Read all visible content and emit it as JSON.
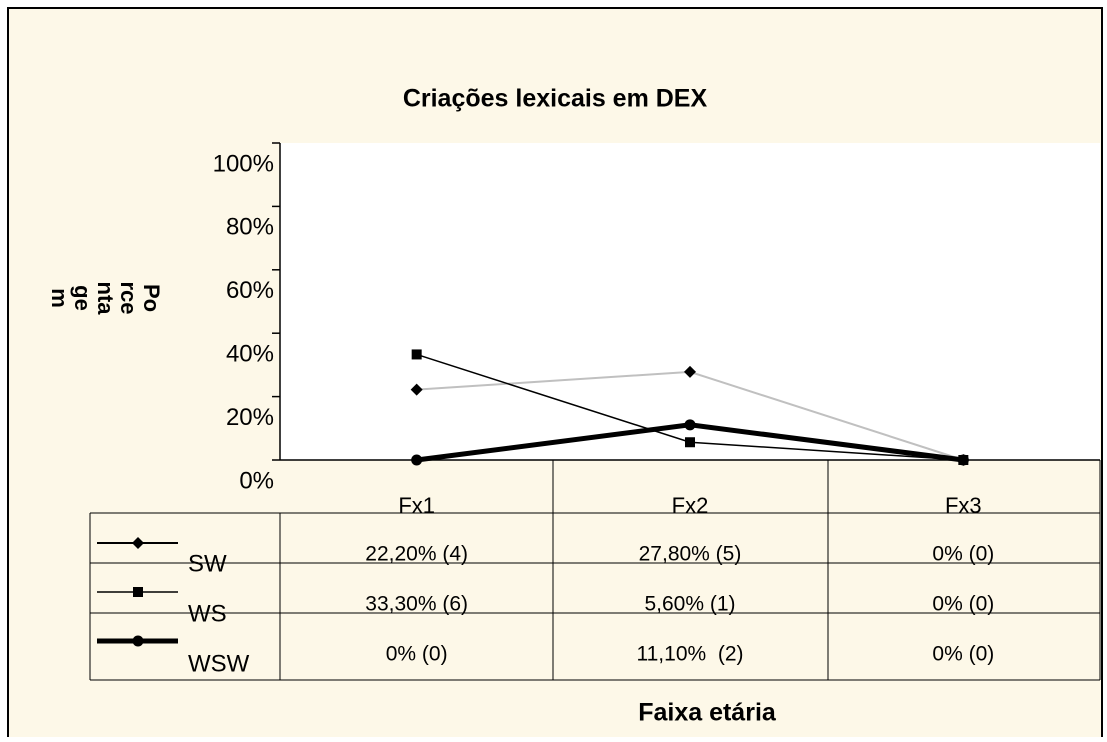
{
  "chart_data": {
    "type": "line",
    "title": "Criações lexicais em DEX",
    "x_label": "Faixa etária",
    "y_label_lines": [
      "Po",
      "rce",
      "nta",
      "ge",
      "m"
    ],
    "categories": [
      "Fx1",
      "Fx2",
      "Fx3"
    ],
    "ylim": [
      0,
      100
    ],
    "yticks": [
      {
        "value": 0,
        "label": "0%"
      },
      {
        "value": 20,
        "label": "20%"
      },
      {
        "value": 40,
        "label": "40%"
      },
      {
        "value": 60,
        "label": "60%"
      },
      {
        "value": 80,
        "label": "80%"
      },
      {
        "value": 100,
        "label": "100%"
      }
    ],
    "marker_color": "#000000",
    "series": [
      {
        "name": "SW",
        "color": "#c0c0c0",
        "width": 2,
        "marker": "diamond",
        "values": [
          22.2,
          27.8,
          0
        ],
        "value_labels": [
          "22,20% (4)",
          "27,80% (5)",
          "0% (0)"
        ]
      },
      {
        "name": "WS",
        "color": "#000000",
        "width": 1.5,
        "marker": "square",
        "values": [
          33.3,
          5.6,
          0
        ],
        "value_labels": [
          "33,30% (6)",
          "5,60% (1)",
          "0% (0)"
        ]
      },
      {
        "name": "WSW",
        "color": "#000000",
        "width": 5,
        "marker": "circle",
        "values": [
          0,
          11.1,
          0
        ],
        "value_labels": [
          "0% (0)",
          "11,10%  (2)",
          "0% (0)"
        ]
      }
    ]
  }
}
